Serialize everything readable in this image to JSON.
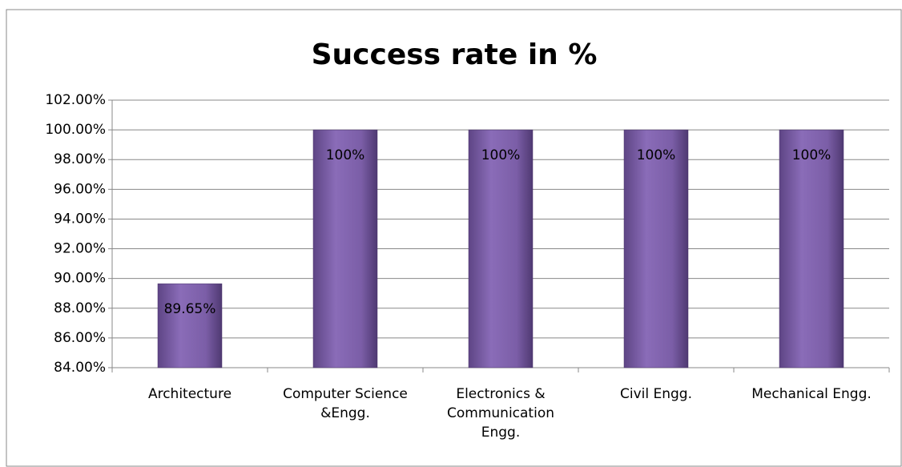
{
  "chart_data": {
    "type": "bar",
    "title": "Success rate in %",
    "categories": [
      "Architecture",
      "Computer Science &Engg.",
      "Electronics & Communication Engg.",
      "Civil Engg.",
      "Mechanical Engg."
    ],
    "values": [
      89.65,
      100,
      100,
      100,
      100
    ],
    "value_labels": [
      "89.65%",
      "100%",
      "100%",
      "100%",
      "100%"
    ],
    "color": "#7b5ea7",
    "ylim": [
      84,
      102
    ],
    "yticks": [
      {
        "value": 84,
        "label": "84.00%"
      },
      {
        "value": 86,
        "label": "86.00%"
      },
      {
        "value": 88,
        "label": "88.00%"
      },
      {
        "value": 90,
        "label": "90.00%"
      },
      {
        "value": 92,
        "label": "92.00%"
      },
      {
        "value": 94,
        "label": "94.00%"
      },
      {
        "value": 96,
        "label": "96.00%"
      },
      {
        "value": 98,
        "label": "98.00%"
      },
      {
        "value": 100,
        "label": "100.00%"
      },
      {
        "value": 102,
        "label": "102.00%"
      }
    ],
    "grid": true
  }
}
